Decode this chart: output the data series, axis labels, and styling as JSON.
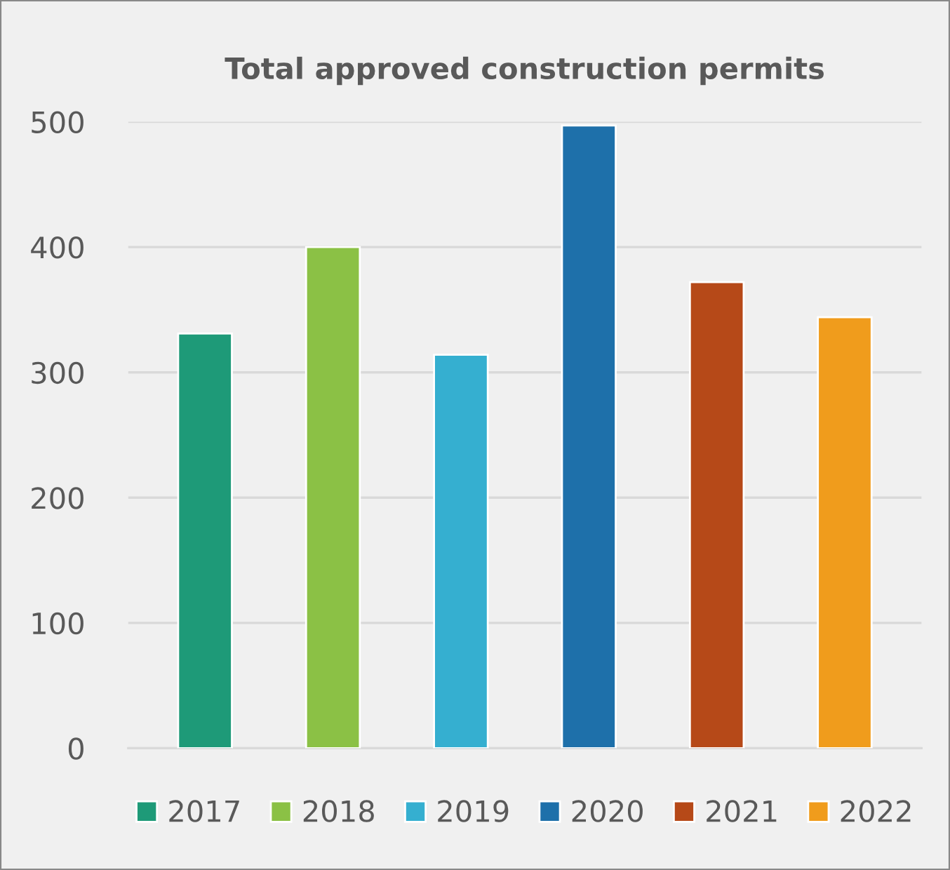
{
  "chart_data": {
    "type": "bar",
    "title": "Total approved construction permits",
    "categories": [
      null,
      null,
      null,
      null,
      null,
      null
    ],
    "series": [
      {
        "name": "2017",
        "color": "#1e9a78",
        "values": [
          331,
          null,
          null,
          null,
          null,
          null
        ]
      },
      {
        "name": "2018",
        "color": "#8bc145",
        "values": [
          null,
          400,
          null,
          null,
          null,
          null
        ]
      },
      {
        "name": "2019",
        "color": "#35afd0",
        "values": [
          null,
          null,
          314,
          null,
          null,
          null
        ]
      },
      {
        "name": "2020",
        "color": "#1e70aa",
        "values": [
          null,
          null,
          null,
          497,
          null,
          null
        ]
      },
      {
        "name": "2021",
        "color": "#b64918",
        "values": [
          null,
          null,
          null,
          null,
          372,
          null
        ]
      },
      {
        "name": "2022",
        "color": "#f09c1c",
        "values": [
          null,
          null,
          null,
          null,
          null,
          344
        ]
      }
    ],
    "ylim": [
      0,
      500
    ],
    "yticks": [
      0,
      100,
      200,
      300,
      400,
      500
    ],
    "grid": "y",
    "legend": "bottom"
  }
}
